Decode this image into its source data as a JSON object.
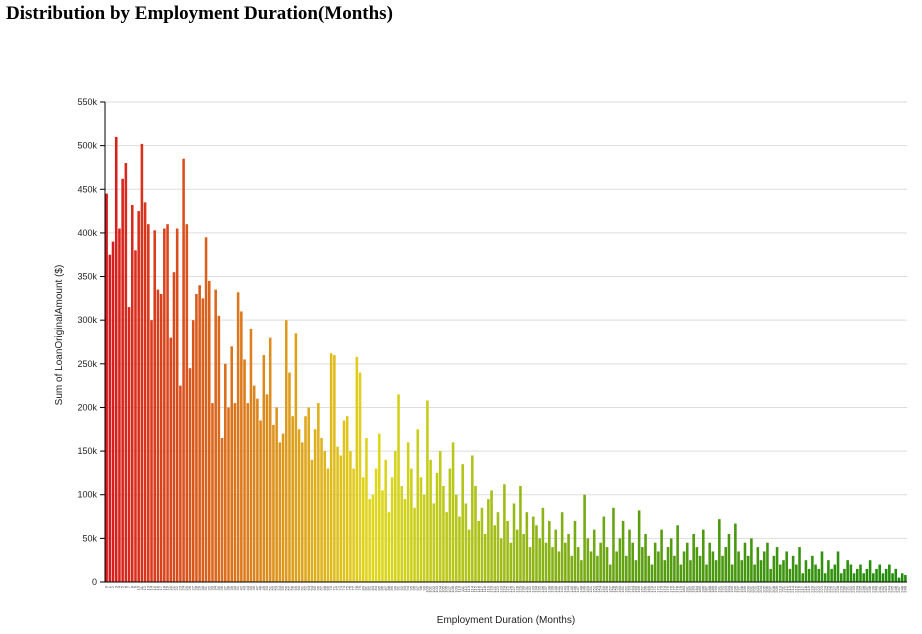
{
  "chart_data": {
    "type": "bar",
    "title": "Distribution by Employment Duration(Months)",
    "x_label": "Employment Duration (Months)",
    "y_label": "Sum of LoanOriginalAmount ($)",
    "categories": [
      0,
      1,
      2,
      3,
      4,
      5,
      6,
      7,
      8,
      9,
      10,
      11,
      12,
      13,
      14,
      15,
      16,
      17,
      18,
      19,
      20,
      21,
      22,
      23,
      24,
      25,
      26,
      27,
      28,
      29,
      30,
      31,
      32,
      33,
      34,
      35,
      36,
      37,
      38,
      39,
      40,
      41,
      42,
      43,
      44,
      45,
      46,
      47,
      48,
      49,
      50,
      51,
      52,
      53,
      54,
      55,
      56,
      57,
      58,
      59,
      60,
      61,
      62,
      63,
      64,
      65,
      66,
      67,
      68,
      69,
      70,
      71,
      72,
      73,
      74,
      75,
      76,
      77,
      78,
      79,
      80,
      81,
      82,
      83,
      84,
      85,
      86,
      87,
      88,
      89,
      90,
      91,
      92,
      93,
      94,
      95,
      96,
      97,
      98,
      99,
      100,
      101,
      102,
      103,
      104,
      105,
      106,
      107,
      108,
      109,
      110,
      111,
      112,
      113,
      114,
      115,
      116,
      117,
      118,
      119,
      120,
      121,
      122,
      123,
      124,
      125,
      126,
      127,
      128,
      129,
      130,
      131,
      132,
      133,
      134,
      135,
      136,
      137,
      138,
      139,
      140,
      141,
      142,
      143,
      144,
      145,
      146,
      147,
      148,
      149,
      150,
      151,
      152,
      153,
      154,
      155,
      156,
      157,
      158,
      159,
      160,
      161,
      162,
      163,
      164,
      165,
      166,
      167,
      168,
      169,
      170,
      171,
      172,
      173,
      174,
      175,
      176,
      177,
      178,
      179,
      180,
      181,
      182,
      183,
      184,
      185,
      186,
      187,
      188,
      189,
      190,
      191,
      192,
      193,
      194,
      195,
      196,
      197,
      198,
      199,
      200,
      201,
      202,
      203,
      204,
      205,
      206,
      207,
      208,
      209,
      210,
      211,
      212,
      213,
      214,
      215,
      216,
      217,
      218,
      219,
      220,
      221,
      222,
      223,
      224,
      225,
      226,
      227,
      228,
      229,
      230,
      231,
      232,
      233,
      234,
      235,
      236,
      237,
      238,
      239,
      240,
      241,
      242,
      243,
      244,
      245,
      246,
      247,
      248,
      249
    ],
    "values": [
      445000,
      375000,
      390000,
      510000,
      405000,
      462000,
      480000,
      315000,
      432000,
      380000,
      425000,
      502000,
      435000,
      410000,
      300000,
      403000,
      335000,
      330000,
      405000,
      410000,
      280000,
      355000,
      405000,
      225000,
      485000,
      410000,
      245000,
      300000,
      330000,
      340000,
      325000,
      395000,
      345000,
      205000,
      335000,
      305000,
      165000,
      250000,
      200000,
      270000,
      205000,
      332000,
      310000,
      255000,
      205000,
      290000,
      225000,
      210000,
      185000,
      260000,
      215000,
      280000,
      180000,
      200000,
      160000,
      170000,
      300000,
      240000,
      190000,
      285000,
      175000,
      160000,
      190000,
      200000,
      140000,
      175000,
      205000,
      165000,
      150000,
      130000,
      262000,
      260000,
      155000,
      145000,
      185000,
      190000,
      150000,
      130000,
      258000,
      240000,
      120000,
      165000,
      95000,
      100000,
      130000,
      170000,
      105000,
      140000,
      80000,
      120000,
      150000,
      215000,
      110000,
      95000,
      160000,
      130000,
      85000,
      175000,
      120000,
      100000,
      208000,
      140000,
      90000,
      125000,
      150000,
      110000,
      80000,
      130000,
      160000,
      100000,
      75000,
      135000,
      90000,
      60000,
      145000,
      110000,
      70000,
      85000,
      55000,
      95000,
      105000,
      65000,
      80000,
      50000,
      112000,
      70000,
      45000,
      90000,
      60000,
      110000,
      55000,
      80000,
      40000,
      75000,
      65000,
      50000,
      85000,
      45000,
      70000,
      40000,
      60000,
      35000,
      80000,
      45000,
      55000,
      30000,
      70000,
      40000,
      25000,
      100000,
      50000,
      35000,
      60000,
      30000,
      45000,
      75000,
      40000,
      20000,
      85000,
      35000,
      50000,
      70000,
      30000,
      60000,
      45000,
      25000,
      82000,
      40000,
      55000,
      30000,
      20000,
      45000,
      35000,
      60000,
      25000,
      40000,
      50000,
      30000,
      65000,
      20000,
      35000,
      45000,
      25000,
      55000,
      40000,
      30000,
      60000,
      20000,
      45000,
      35000,
      25000,
      72000,
      30000,
      40000,
      55000,
      20000,
      67000,
      35000,
      25000,
      45000,
      30000,
      50000,
      20000,
      40000,
      25000,
      35000,
      45000,
      15000,
      30000,
      40000,
      20000,
      25000,
      35000,
      15000,
      30000,
      20000,
      40000,
      10000,
      25000,
      15000,
      30000,
      20000,
      15000,
      35000,
      10000,
      25000,
      15000,
      20000,
      35000,
      10000,
      15000,
      25000,
      20000,
      10000,
      15000,
      20000,
      10000,
      15000,
      25000,
      10000,
      15000,
      20000,
      10000,
      15000,
      20000,
      10000,
      15000,
      5000,
      10000,
      8000
    ],
    "color_scale": [
      "#d7191c",
      "#e0d81c",
      "#5a9e10",
      "#1f8a0a"
    ],
    "ylim": [
      0,
      550000
    ],
    "yticks": [
      0,
      {
        "value": 50000,
        "label": "50k"
      },
      {
        "value": 100000,
        "label": "100k"
      },
      {
        "value": 150000,
        "label": "150k"
      },
      {
        "value": 200000,
        "label": "200k"
      },
      {
        "value": 250000,
        "label": "250k"
      },
      {
        "value": 300000,
        "label": "300k"
      },
      {
        "value": 350000,
        "label": "350k"
      },
      {
        "value": 400000,
        "label": "400k"
      },
      {
        "value": 450000,
        "label": "450k"
      },
      {
        "value": 500000,
        "label": "500k"
      },
      {
        "value": 550000,
        "label": "550k"
      }
    ],
    "grid": true
  }
}
